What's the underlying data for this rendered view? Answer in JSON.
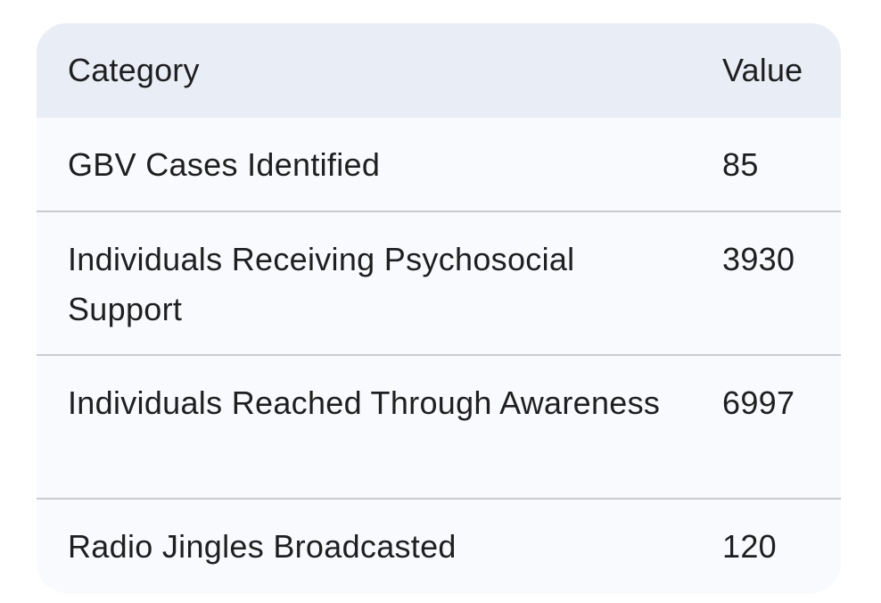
{
  "table": {
    "headers": {
      "category": "Category",
      "value": "Value"
    },
    "rows": [
      {
        "category": "GBV Cases Identified",
        "value": "85"
      },
      {
        "category": "Individuals Receiving Psychosocial Support",
        "value": "3930"
      },
      {
        "category": "Individuals Reached Through Awareness",
        "value": "6997"
      },
      {
        "category": "Radio Jingles Broadcasted",
        "value": "120"
      }
    ]
  },
  "colors": {
    "header_background": "#e9eef6",
    "body_background": "#f8fafd",
    "divider": "#c8cbd0",
    "text": "#1f1f1f"
  }
}
